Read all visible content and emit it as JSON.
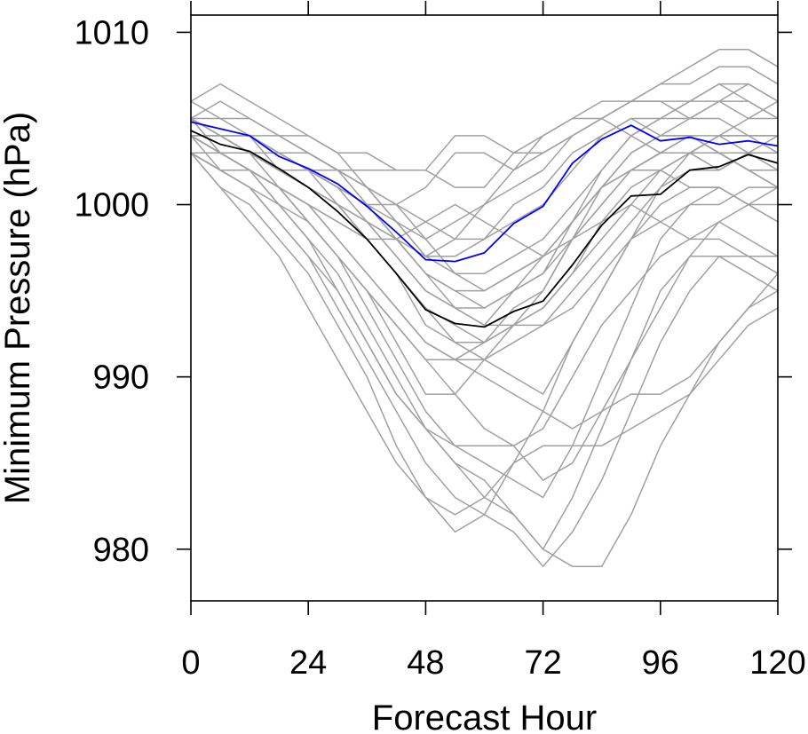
{
  "chart_data": {
    "type": "line",
    "title": "",
    "xlabel": "Forecast Hour",
    "ylabel": "Minimum Pressure (hPa)",
    "xlim": [
      0,
      120
    ],
    "ylim": [
      977,
      1011
    ],
    "xticks": [
      0,
      24,
      48,
      72,
      96,
      120
    ],
    "yticks": [
      980,
      990,
      1000,
      1010
    ],
    "xtick_labels": [
      "0",
      "24",
      "48",
      "72",
      "96",
      "120"
    ],
    "ytick_labels": [
      "980",
      "990",
      "1000",
      "1010"
    ],
    "grid": false,
    "legend": "none",
    "x": [
      0,
      6,
      12,
      18,
      24,
      30,
      36,
      42,
      48,
      54,
      60,
      66,
      72,
      78,
      84,
      90,
      96,
      102,
      108,
      114,
      120
    ],
    "series": [
      {
        "color": "#0000ff",
        "values": [
          1004.8,
          1004.4,
          1004.0,
          1002.8,
          1002.1,
          1001.2,
          999.9,
          998.4,
          996.8,
          996.7,
          997.2,
          998.9,
          999.9,
          1002.4,
          1003.8,
          1004.6,
          1003.7,
          1003.9,
          1003.5,
          1003.7,
          1003.4
        ]
      },
      {
        "color": "#000000",
        "values": [
          1004.3,
          1003.5,
          1003.1,
          1002.1,
          1001.0,
          999.6,
          998.0,
          996.0,
          993.9,
          993.1,
          992.9,
          993.8,
          994.4,
          996.5,
          998.8,
          1000.5,
          1000.6,
          1002.0,
          1002.2,
          1002.9,
          1002.4
        ]
      }
    ],
    "ensemble_color": "#a0a0a0",
    "ensemble_members": [
      [
        1005,
        1004,
        1004,
        1002,
        1001,
        1000,
        999,
        997,
        995,
        994,
        993,
        995,
        996,
        999,
        1002,
        1004,
        1005,
        1005,
        1006,
        1005,
        1005
      ],
      [
        1004,
        1003,
        1003,
        1002,
        1002,
        1001,
        1000,
        999,
        997,
        997,
        998,
        999,
        1000,
        1002,
        1004,
        1005,
        1004,
        1004,
        1003,
        1003,
        1003
      ],
      [
        1006,
        1005,
        1005,
        1004,
        1003,
        1002,
        1001,
        999,
        998,
        999,
        1000,
        1001,
        1002,
        1004,
        1005,
        1006,
        1006,
        1006,
        1007,
        1006,
        1005
      ],
      [
        1003,
        1002,
        1002,
        1001,
        1000,
        999,
        998,
        996,
        994,
        993,
        992,
        994,
        995,
        998,
        1000,
        1002,
        1003,
        1004,
        1003,
        1002,
        1002
      ],
      [
        1005,
        1004,
        1003,
        1003,
        1002,
        1001,
        999,
        998,
        996,
        995,
        994,
        995,
        997,
        999,
        1001,
        1003,
        1004,
        1005,
        1005,
        1004,
        1004
      ],
      [
        1004,
        1003,
        1002,
        1001,
        1000,
        998,
        996,
        994,
        992,
        991,
        992,
        993,
        994,
        996,
        999,
        1001,
        1002,
        1003,
        1003,
        1002,
        1001
      ],
      [
        1005,
        1004,
        1004,
        1003,
        1003,
        1002,
        1001,
        1000,
        999,
        998,
        998,
        1000,
        1001,
        1003,
        1004,
        1005,
        1005,
        1006,
        1006,
        1006,
        1005
      ],
      [
        1004,
        1004,
        1003,
        1002,
        1001,
        1000,
        998,
        996,
        994,
        992,
        991,
        990,
        989,
        992,
        995,
        998,
        1001,
        1003,
        1004,
        1004,
        1003
      ],
      [
        1003,
        1002,
        1001,
        1000,
        999,
        997,
        995,
        992,
        989,
        989,
        991,
        993,
        995,
        998,
        1001,
        1003,
        1004,
        1004,
        1003,
        1002,
        1001
      ],
      [
        1005,
        1003,
        1002,
        1001,
        999,
        997,
        994,
        991,
        988,
        986,
        985,
        984,
        983,
        986,
        990,
        994,
        998,
        1000,
        1001,
        1000,
        999
      ],
      [
        1004,
        1003,
        1002,
        1000,
        998,
        996,
        993,
        990,
        987,
        985,
        983,
        982,
        980,
        983,
        987,
        991,
        995,
        997,
        997,
        996,
        995
      ],
      [
        1003,
        1001,
        1000,
        998,
        996,
        993,
        990,
        986,
        983,
        981,
        982,
        985,
        988,
        992,
        995,
        998,
        1000,
        1001,
        1001,
        1000,
        999
      ],
      [
        1004,
        1002,
        1001,
        999,
        997,
        994,
        991,
        988,
        985,
        983,
        982,
        981,
        979,
        981,
        984,
        988,
        992,
        995,
        997,
        997,
        996
      ],
      [
        1003,
        1002,
        1001,
        999,
        997,
        995,
        992,
        989,
        987,
        985,
        984,
        982,
        980,
        979,
        979,
        982,
        986,
        989,
        992,
        994,
        995
      ],
      [
        1003,
        1001,
        999,
        997,
        994,
        991,
        988,
        985,
        983,
        982,
        983,
        985,
        986,
        986,
        986,
        987,
        988,
        989,
        991,
        993,
        994
      ],
      [
        1005,
        1004,
        1003,
        1001,
        999,
        997,
        995,
        993,
        991,
        989,
        987,
        986,
        984,
        985,
        988,
        991,
        994,
        997,
        999,
        1000,
        1000
      ],
      [
        1004,
        1003,
        1002,
        1001,
        1000,
        998,
        996,
        994,
        992,
        991,
        990,
        989,
        988,
        987,
        988,
        989,
        989,
        990,
        992,
        994,
        996
      ],
      [
        1005,
        1003,
        1002,
        1000,
        998,
        995,
        992,
        989,
        987,
        986,
        986,
        986,
        987,
        990,
        993,
        995,
        997,
        998,
        999,
        998,
        997
      ],
      [
        1004,
        1003,
        1003,
        1002,
        1001,
        1000,
        999,
        998,
        997,
        998,
        1000,
        1002,
        1003,
        1004,
        1005,
        1006,
        1007,
        1007,
        1008,
        1008,
        1007
      ],
      [
        1005,
        1004,
        1004,
        1003,
        1003,
        1002,
        1002,
        1002,
        1002,
        1004,
        1004,
        1003,
        1003,
        1004,
        1005,
        1006,
        1007,
        1008,
        1009,
        1009,
        1008
      ],
      [
        1004,
        1003,
        1003,
        1002,
        1002,
        1001,
        1000,
        1000,
        1001,
        1003,
        1003,
        1002,
        1004,
        1005,
        1005,
        1004,
        1003,
        1003,
        1002,
        1003,
        1002
      ],
      [
        1003,
        1002,
        1002,
        1001,
        1000,
        999,
        998,
        998,
        999,
        1000,
        999,
        998,
        997,
        998,
        999,
        1000,
        999,
        998,
        998,
        997,
        997
      ],
      [
        1004,
        1003,
        1003,
        1003,
        1002,
        1002,
        1001,
        1000,
        998,
        996,
        995,
        996,
        997,
        999,
        1001,
        1002,
        1002,
        1001,
        1001,
        1000,
        1001
      ],
      [
        1005,
        1005,
        1004,
        1004,
        1004,
        1003,
        1003,
        1002,
        1002,
        1001,
        1001,
        1003,
        1004,
        1005,
        1006,
        1006,
        1006,
        1005,
        1006,
        1007,
        1006
      ],
      [
        1005,
        1006,
        1005,
        1004,
        1003,
        1002,
        1000,
        998,
        996,
        994,
        993,
        993,
        994,
        996,
        998,
        1000,
        1002,
        1003,
        1004,
        1005,
        1006
      ],
      [
        1006,
        1007,
        1006,
        1005,
        1004,
        1003,
        1001,
        999,
        997,
        996,
        996,
        997,
        998,
        1000,
        1002,
        1004,
        1005,
        1006,
        1007,
        1007,
        1006
      ],
      [
        1004,
        1004,
        1003,
        1003,
        1002,
        1000,
        998,
        996,
        993,
        992,
        992,
        993,
        993,
        995,
        997,
        999,
        1001,
        1002,
        1002,
        1003,
        1004
      ],
      [
        1003,
        1003,
        1002,
        1001,
        999,
        997,
        995,
        993,
        991,
        991,
        991,
        992,
        993,
        994,
        996,
        998,
        999,
        1000,
        1000,
        1001,
        1001
      ],
      [
        1004,
        1004,
        1003,
        1002,
        1001,
        1000,
        999,
        997,
        995,
        994,
        994,
        995,
        996,
        998,
        1000,
        1002,
        1003,
        1003,
        1004,
        1004,
        1004
      ],
      [
        1005,
        1004,
        1004,
        1003,
        1002,
        1001,
        1000,
        998,
        996,
        995,
        995,
        996,
        997,
        999,
        1001,
        1002,
        1003,
        1004,
        1004,
        1003,
        1003
      ]
    ]
  }
}
